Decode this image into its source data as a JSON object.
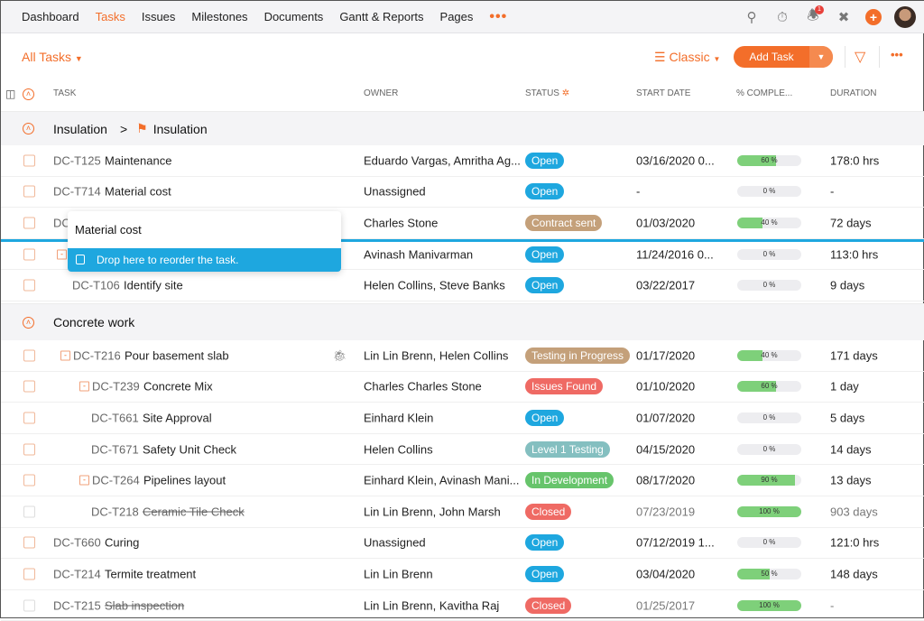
{
  "nav": {
    "items": [
      "Dashboard",
      "Tasks",
      "Issues",
      "Milestones",
      "Documents",
      "Gantt & Reports",
      "Pages"
    ],
    "active": "Tasks",
    "more": "•••",
    "notification_count": "1"
  },
  "toolbar": {
    "filter_label": "All Tasks",
    "view_label": "Classic",
    "add_task_label": "Add Task",
    "more": "•••"
  },
  "columns": {
    "task": "TASK",
    "owner": "OWNER",
    "status": "STATUS",
    "start_date": "START DATE",
    "completion": "% COMPLE...",
    "duration": "DURATION"
  },
  "colors": {
    "accent": "#f36e2a",
    "open": "#1ea7df",
    "contract_sent": "#c4a07a",
    "testing_in_progress": "#c4a07a",
    "issues_found": "#ef6a64",
    "level1": "#84bfc0",
    "in_development": "#67c46b",
    "closed": "#ef6a64",
    "progress": "#7ed07a"
  },
  "drag_tooltip": {
    "title": "Material cost",
    "message": "Drop here to reorder the task."
  },
  "groups": [
    {
      "name": "Insulation",
      "breadcrumb_separator": ">",
      "milestone": "Insulation",
      "rows": [
        {
          "id": "DC-T125",
          "name": "Maintenance",
          "owner": "Eduardo Vargas, Amritha Ag...",
          "status": "Open",
          "status_color": "#1ea7df",
          "start": "03/16/2020 0...",
          "progress": 60,
          "progress_label": "60 %",
          "duration": "178:0 hrs",
          "indent": 0
        },
        {
          "id": "DC-T714",
          "name": "Material cost",
          "owner": "Unassigned",
          "status": "Open",
          "status_color": "#1ea7df",
          "start": "-",
          "progress": 0,
          "progress_label": "0 %",
          "duration": "-",
          "indent": 0
        },
        {
          "id": "DC",
          "name": "",
          "owner": "Charles Stone",
          "status": "Contract sent",
          "status_color": "#c4a07a",
          "start": "01/03/2020",
          "progress": 40,
          "progress_label": "40 %",
          "duration": "72 days",
          "indent": 0
        },
        {
          "id": "",
          "name": "",
          "owner": "Avinash Manivarman",
          "status": "Open",
          "status_color": "#1ea7df",
          "start": "11/24/2016 0...",
          "progress": 0,
          "progress_label": "0 %",
          "duration": "113:0 hrs",
          "indent": 0,
          "expand": true
        },
        {
          "id": "DC-T106",
          "name": "Identify site",
          "owner": "Helen Collins, Steve Banks",
          "status": "Open",
          "status_color": "#1ea7df",
          "start": "03/22/2017",
          "progress": 0,
          "progress_label": "0 %",
          "duration": "9 days",
          "indent": 1
        }
      ]
    },
    {
      "name": "Concrete work",
      "rows": [
        {
          "id": "DC-T216",
          "name": "Pour basement slab",
          "owner": "Lin Lin Brenn, Helen Collins",
          "status": "Testing in Progress",
          "status_color": "#c4a07a",
          "start": "01/17/2020",
          "progress": 40,
          "progress_label": "40 %",
          "duration": "171 days",
          "indent": 1,
          "expand": true,
          "bug": true
        },
        {
          "id": "DC-T239",
          "name": "Concrete Mix",
          "owner": "Charles Charles Stone",
          "status": "Issues Found",
          "status_color": "#ef6a64",
          "start": "01/10/2020",
          "progress": 60,
          "progress_label": "60 %",
          "duration": "1 day",
          "indent": 2,
          "expand": true
        },
        {
          "id": "DC-T661",
          "name": "Site Approval",
          "owner": "Einhard Klein",
          "status": "Open",
          "status_color": "#1ea7df",
          "start": "01/07/2020",
          "progress": 0,
          "progress_label": "0 %",
          "duration": "5 days",
          "indent": 2
        },
        {
          "id": "DC-T671",
          "name": "Safety Unit Check",
          "owner": "Helen Collins",
          "status": "Level 1 Testing",
          "status_color": "#84bfc0",
          "start": "04/15/2020",
          "progress": 0,
          "progress_label": "0 %",
          "duration": "14 days",
          "indent": 2
        },
        {
          "id": "DC-T264",
          "name": "Pipelines layout",
          "owner": "Einhard Klein, Avinash Mani...",
          "status": "In Development",
          "status_color": "#67c46b",
          "start": "08/17/2020",
          "progress": 90,
          "progress_label": "90 %",
          "duration": "13 days",
          "indent": 2,
          "expand": true
        },
        {
          "id": "DC-T218",
          "name": "Ceramic Tile Check",
          "owner": "Lin Lin Brenn, John Marsh",
          "status": "Closed",
          "status_color": "#ef6a64",
          "start": "07/23/2019",
          "progress": 100,
          "progress_label": "100 %",
          "duration": "903 days",
          "indent": 2,
          "closed": true
        },
        {
          "id": "DC-T660",
          "name": "Curing",
          "owner": "Unassigned",
          "status": "Open",
          "status_color": "#1ea7df",
          "start": "07/12/2019 1...",
          "progress": 0,
          "progress_label": "0 %",
          "duration": "121:0 hrs",
          "indent": 0
        },
        {
          "id": "DC-T214",
          "name": "Termite treatment",
          "owner": "Lin Lin Brenn",
          "status": "Open",
          "status_color": "#1ea7df",
          "start": "03/04/2020",
          "progress": 50,
          "progress_label": "50 %",
          "duration": "148 days",
          "indent": 0
        },
        {
          "id": "DC-T215",
          "name": "Slab inspection",
          "owner": "Lin Lin Brenn, Kavitha Raj",
          "status": "Closed",
          "status_color": "#ef6a64",
          "start": "01/25/2017",
          "progress": 100,
          "progress_label": "100 %",
          "duration": "-",
          "indent": 0,
          "closed": true
        }
      ]
    }
  ]
}
